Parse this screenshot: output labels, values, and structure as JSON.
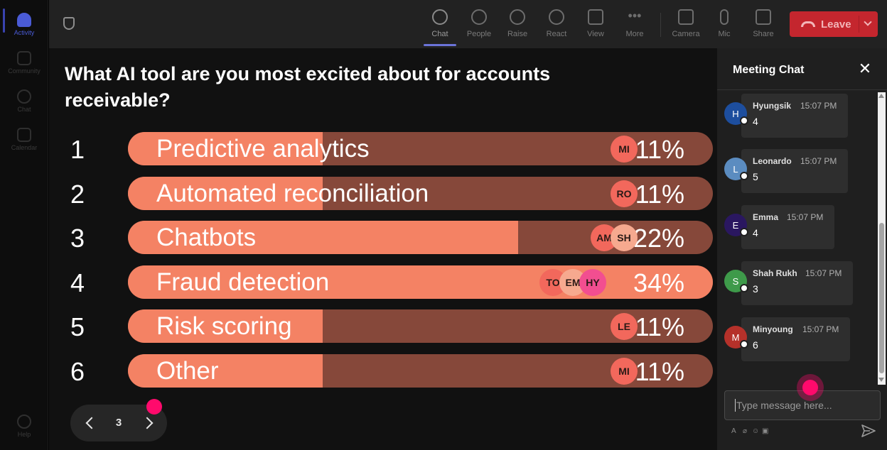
{
  "rail": {
    "items": [
      {
        "label": "Activity",
        "icon": "bell-icon",
        "active": true
      },
      {
        "label": "Community",
        "icon": "community-icon",
        "active": false
      },
      {
        "label": "Chat",
        "icon": "chat-icon",
        "active": false
      },
      {
        "label": "Calendar",
        "icon": "calendar-icon",
        "active": false
      }
    ],
    "help_label": "Help"
  },
  "toolbar": {
    "buttons": [
      {
        "label": "Chat",
        "icon": "chat-icon",
        "active": true
      },
      {
        "label": "People",
        "icon": "people-icon"
      },
      {
        "label": "Raise",
        "icon": "hand-icon"
      },
      {
        "label": "React",
        "icon": "emoji-icon"
      },
      {
        "label": "View",
        "icon": "grid-icon"
      },
      {
        "label": "More",
        "icon": "more-icon"
      },
      {
        "label": "Camera",
        "icon": "camera-off-icon"
      },
      {
        "label": "Mic",
        "icon": "mic-icon"
      },
      {
        "label": "Share",
        "icon": "share-icon"
      }
    ],
    "leave_label": "Leave",
    "leave_color": "#c4262e"
  },
  "poll": {
    "question": "What AI tool are you most excited about for accounts receivable?",
    "bar_fill_color": "#f48264",
    "bar_track_color": "#86483a",
    "options": [
      {
        "num": "1",
        "label": "Predictive analytics",
        "pct": "11%",
        "fraction": 0.333,
        "avatars": [
          {
            "initials": "MI",
            "color": "#f2685c"
          }
        ]
      },
      {
        "num": "2",
        "label": "Automated reconciliation",
        "pct": "11%",
        "fraction": 0.333,
        "avatars": [
          {
            "initials": "RO",
            "color": "#f2685c"
          }
        ]
      },
      {
        "num": "3",
        "label": "Chatbots",
        "pct": "22%",
        "fraction": 0.667,
        "avatars": [
          {
            "initials": "SH",
            "color": "#f6a98f"
          },
          {
            "initials": "AM",
            "color": "#f2685c"
          }
        ]
      },
      {
        "num": "4",
        "label": "Fraud detection",
        "pct": "34%",
        "fraction": 1.0,
        "avatars": [
          {
            "initials": "HY",
            "color": "#f24e90"
          },
          {
            "initials": "EM",
            "color": "#f6a98f"
          },
          {
            "initials": "TO",
            "color": "#f2685c"
          }
        ]
      },
      {
        "num": "5",
        "label": "Risk scoring",
        "pct": "11%",
        "fraction": 0.333,
        "avatars": [
          {
            "initials": "LE",
            "color": "#f2685c"
          }
        ]
      },
      {
        "num": "6",
        "label": "Other",
        "pct": "11%",
        "fraction": 0.333,
        "avatars": [
          {
            "initials": "MI",
            "color": "#f2685c"
          }
        ]
      }
    ],
    "page": "3"
  },
  "chat": {
    "title": "Meeting Chat",
    "messages": [
      {
        "initial": "H",
        "name": "Hyungsik",
        "time": "15:07 PM",
        "text": "4",
        "avatar_color": "#1d4e9e"
      },
      {
        "initial": "L",
        "name": "Leonardo",
        "time": "15:07 PM",
        "text": "5",
        "avatar_color": "#5b8cc0"
      },
      {
        "initial": "E",
        "name": "Emma",
        "time": "15:07 PM",
        "text": "4",
        "avatar_color": "#2a1760"
      },
      {
        "initial": "S",
        "name": "Shah Rukh",
        "time": "15:07 PM",
        "text": "3",
        "avatar_color": "#3e9a4a"
      },
      {
        "initial": "M",
        "name": "Minyoung",
        "time": "15:07 PM",
        "text": "6",
        "avatar_color": "#b5312a"
      }
    ],
    "input_placeholder": "Type message here..."
  }
}
